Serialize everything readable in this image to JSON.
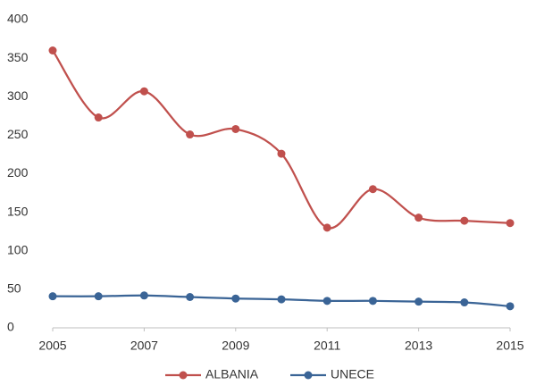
{
  "chart_data": {
    "type": "line",
    "x": [
      2005,
      2006,
      2007,
      2008,
      2009,
      2010,
      2011,
      2012,
      2013,
      2014,
      2015
    ],
    "series": [
      {
        "name": "ALBANIA",
        "color": "#c0504d",
        "values": [
          360,
          273,
          307,
          251,
          258,
          226,
          130,
          180,
          143,
          139,
          136
        ]
      },
      {
        "name": "UNECE",
        "color": "#3a6496",
        "values": [
          41,
          41,
          42,
          40,
          38,
          37,
          35,
          35,
          34,
          33,
          28
        ]
      }
    ],
    "xlim": [
      2005,
      2015
    ],
    "xticks": [
      2005,
      2007,
      2009,
      2011,
      2013,
      2015
    ],
    "ylim": [
      0,
      400
    ],
    "yticks": [
      0,
      50,
      100,
      150,
      200,
      250,
      300,
      350,
      400
    ],
    "grid": false,
    "smooth": true,
    "legend": "bottom"
  }
}
